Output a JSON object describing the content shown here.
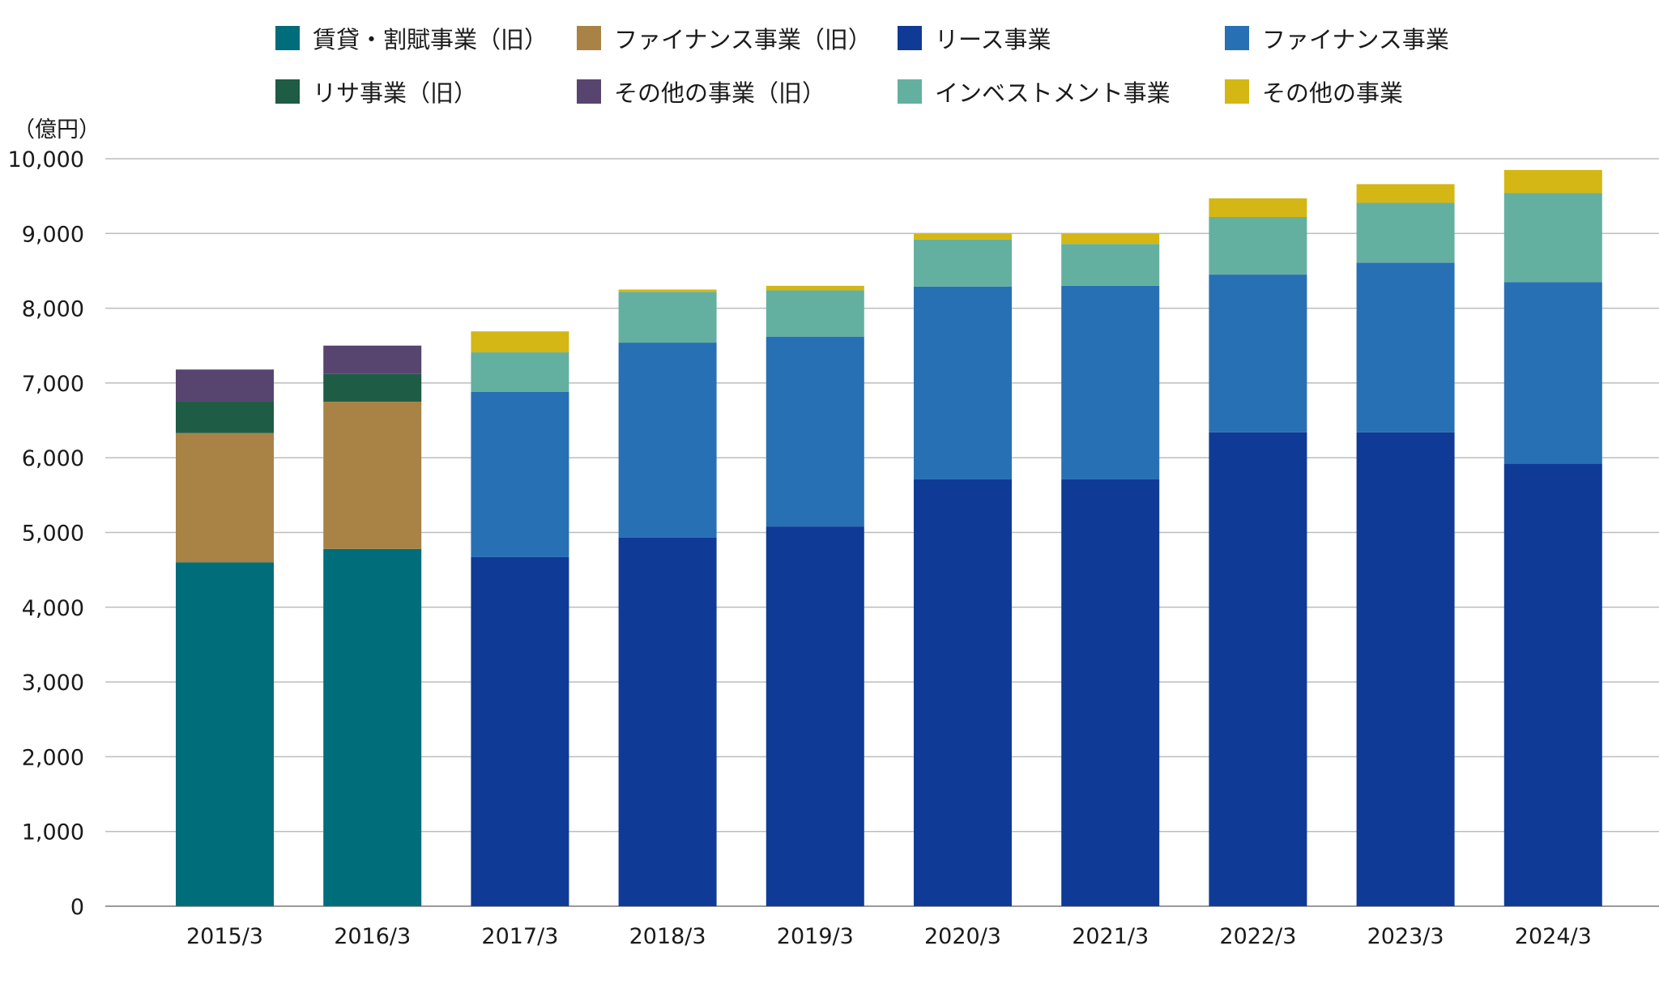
{
  "chart_data": {
    "type": "bar",
    "stacked": true,
    "ylabel": "（億円）",
    "ylim": [
      0,
      10000
    ],
    "yticks": [
      0,
      1000,
      2000,
      3000,
      4000,
      5000,
      6000,
      7000,
      8000,
      9000,
      10000
    ],
    "ytick_labels": [
      "0",
      "1,000",
      "2,000",
      "3,000",
      "4,000",
      "5,000",
      "6,000",
      "7,000",
      "8,000",
      "9,000",
      "10,000"
    ],
    "grid": true,
    "legend_position": "top",
    "categories": [
      "2015/3",
      "2016/3",
      "2017/3",
      "2018/3",
      "2019/3",
      "2020/3",
      "2021/3",
      "2022/3",
      "2023/3",
      "2024/3"
    ],
    "series": [
      {
        "name": "賃貸・割賦事業（旧）",
        "color": "#006d7a",
        "values": [
          4600,
          4780,
          0,
          0,
          0,
          0,
          0,
          0,
          0,
          0
        ]
      },
      {
        "name": "ファイナンス事業（旧）",
        "color": "#a88345",
        "values": [
          1730,
          1970,
          0,
          0,
          0,
          0,
          0,
          0,
          0,
          0
        ]
      },
      {
        "name": "リサ事業（旧）",
        "color": "#1f5c45",
        "values": [
          420,
          370,
          0,
          0,
          0,
          0,
          0,
          0,
          0,
          0
        ]
      },
      {
        "name": "その他の事業（旧）",
        "color": "#574570",
        "values": [
          430,
          380,
          0,
          0,
          0,
          0,
          0,
          0,
          0,
          0
        ]
      },
      {
        "name": "リース事業",
        "color": "#0f3b96",
        "values": [
          0,
          0,
          4670,
          4930,
          5080,
          5710,
          5710,
          6340,
          6340,
          5920
        ]
      },
      {
        "name": "ファイナンス事業",
        "color": "#2870b4",
        "values": [
          0,
          0,
          2210,
          2610,
          2540,
          2580,
          2590,
          2110,
          2270,
          2430
        ]
      },
      {
        "name": "インベストメント事業",
        "color": "#64b0a0",
        "values": [
          0,
          0,
          530,
          680,
          620,
          630,
          560,
          770,
          800,
          1190
        ]
      },
      {
        "name": "その他の事業",
        "color": "#d4b714",
        "values": [
          0,
          0,
          280,
          30,
          60,
          80,
          140,
          250,
          250,
          310
        ]
      }
    ],
    "legend_order": [
      "賃貸・割賦事業（旧）",
      "ファイナンス事業（旧）",
      "リース事業",
      "ファイナンス事業",
      "リサ事業（旧）",
      "その他の事業（旧）",
      "インベストメント事業",
      "その他の事業"
    ]
  }
}
